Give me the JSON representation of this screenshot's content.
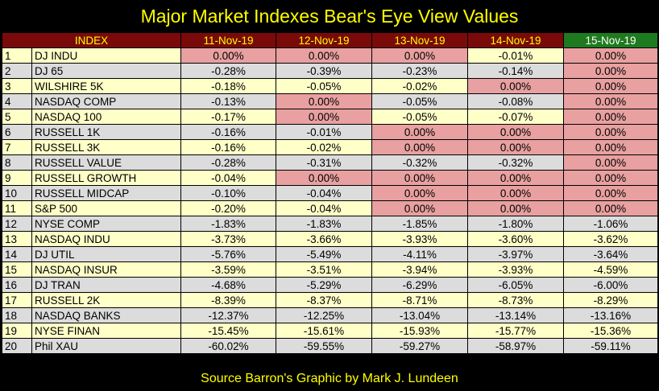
{
  "title": "Major Market Indexes Bear's Eye View Values",
  "headers": [
    "INDEX",
    "11-Nov-19",
    "12-Nov-19",
    "13-Nov-19",
    "14-Nov-19",
    "15-Nov-19"
  ],
  "rows": [
    {
      "n": "1",
      "name": "DJ  INDU",
      "v": [
        "0.00%",
        "0.00%",
        "0.00%",
        "-0.01%",
        "0.00%"
      ]
    },
    {
      "n": "2",
      "name": "DJ  65",
      "v": [
        "-0.28%",
        "-0.39%",
        "-0.23%",
        "-0.14%",
        "0.00%"
      ]
    },
    {
      "n": "3",
      "name": "WILSHIRE 5K",
      "v": [
        "-0.18%",
        "-0.05%",
        "-0.02%",
        "0.00%",
        "0.00%"
      ]
    },
    {
      "n": "4",
      "name": "NASDAQ COMP",
      "v": [
        "-0.13%",
        "0.00%",
        "-0.05%",
        "-0.08%",
        "0.00%"
      ]
    },
    {
      "n": "5",
      "name": "NASDAQ 100",
      "v": [
        "-0.17%",
        "0.00%",
        "-0.05%",
        "-0.07%",
        "0.00%"
      ]
    },
    {
      "n": "6",
      "name": "RUSSELL 1K",
      "v": [
        "-0.16%",
        "-0.01%",
        "0.00%",
        "0.00%",
        "0.00%"
      ]
    },
    {
      "n": "7",
      "name": "RUSSELL 3K",
      "v": [
        "-0.16%",
        "-0.02%",
        "0.00%",
        "0.00%",
        "0.00%"
      ]
    },
    {
      "n": "8",
      "name": "RUSSELL VALUE",
      "v": [
        "-0.28%",
        "-0.31%",
        "-0.32%",
        "-0.32%",
        "0.00%"
      ]
    },
    {
      "n": "9",
      "name": "RUSSELL GROWTH",
      "v": [
        "-0.04%",
        "0.00%",
        "0.00%",
        "0.00%",
        "0.00%"
      ]
    },
    {
      "n": "10",
      "name": "RUSSELL MIDCAP",
      "v": [
        "-0.10%",
        "-0.04%",
        "0.00%",
        "0.00%",
        "0.00%"
      ]
    },
    {
      "n": "11",
      "name": "S&P 500",
      "v": [
        "-0.20%",
        "-0.04%",
        "0.00%",
        "0.00%",
        "0.00%"
      ]
    },
    {
      "n": "12",
      "name": "NYSE COMP",
      "v": [
        "-1.83%",
        "-1.83%",
        "-1.85%",
        "-1.80%",
        "-1.06%"
      ]
    },
    {
      "n": "13",
      "name": "NASDAQ INDU",
      "v": [
        "-3.73%",
        "-3.66%",
        "-3.93%",
        "-3.60%",
        "-3.62%"
      ]
    },
    {
      "n": "14",
      "name": "DJ  UTIL",
      "v": [
        "-5.76%",
        "-5.49%",
        "-4.11%",
        "-3.97%",
        "-3.64%"
      ]
    },
    {
      "n": "15",
      "name": "NASDAQ INSUR",
      "v": [
        "-3.59%",
        "-3.51%",
        "-3.94%",
        "-3.93%",
        "-4.59%"
      ]
    },
    {
      "n": "16",
      "name": "DJ  TRAN",
      "v": [
        "-4.68%",
        "-5.29%",
        "-6.29%",
        "-6.05%",
        "-6.00%"
      ]
    },
    {
      "n": "17",
      "name": "RUSSELL 2K",
      "v": [
        "-8.39%",
        "-8.37%",
        "-8.71%",
        "-8.73%",
        "-8.29%"
      ]
    },
    {
      "n": "18",
      "name": "NASDAQ BANKS",
      "v": [
        "-12.37%",
        "-12.25%",
        "-13.04%",
        "-13.14%",
        "-13.16%"
      ]
    },
    {
      "n": "19",
      "name": "NYSE FINAN",
      "v": [
        "-15.45%",
        "-15.61%",
        "-15.93%",
        "-15.77%",
        "-15.36%"
      ]
    },
    {
      "n": "20",
      "name": "Phil XAU",
      "v": [
        "-60.02%",
        "-59.55%",
        "-59.27%",
        "-58.97%",
        "-59.11%"
      ]
    }
  ],
  "highlight_color": "#e8a0a0",
  "footer": "Source Barron's   Graphic by Mark J. Lundeen"
}
